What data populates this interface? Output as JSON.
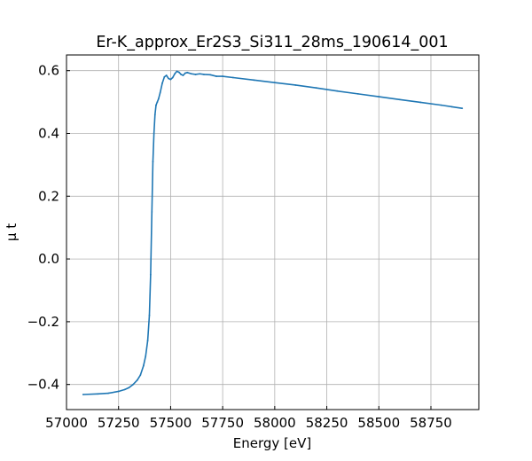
{
  "chart_data": {
    "type": "line",
    "title": "Er-K_approx_Er2S3_Si311_28ms_190614_001",
    "xlabel": "Energy [eV]",
    "ylabel": "μ t",
    "xlim": [
      57000,
      58980
    ],
    "ylim": [
      -0.48,
      0.65
    ],
    "xticks": [
      57000,
      57250,
      57500,
      57750,
      58000,
      58250,
      58500,
      58750
    ],
    "xtick_labels": [
      "57000",
      "57250",
      "57500",
      "57750",
      "58000",
      "58250",
      "58500",
      "58750"
    ],
    "yticks": [
      -0.4,
      -0.2,
      0.0,
      0.2,
      0.4,
      0.6
    ],
    "ytick_labels": [
      "−0.4",
      "−0.2",
      "0.0",
      "0.2",
      "0.4",
      "0.6"
    ],
    "grid": true,
    "color": "#1f77b4",
    "series": [
      {
        "x": [
          57080,
          57150,
          57200,
          57250,
          57280,
          57300,
          57320,
          57340,
          57355,
          57370,
          57380,
          57390,
          57398,
          57404,
          57410,
          57415,
          57420,
          57425,
          57430,
          57436,
          57442,
          57450,
          57460,
          57470,
          57480,
          57490,
          57500,
          57510,
          57520,
          57530,
          57540,
          57550,
          57560,
          57570,
          57580,
          57600,
          57620,
          57640,
          57660,
          57690,
          57720,
          57750,
          57800,
          57900,
          58000,
          58100,
          58200,
          58300,
          58400,
          58500,
          58600,
          58700,
          58800,
          58850,
          58900
        ],
        "y": [
          -0.432,
          -0.43,
          -0.428,
          -0.422,
          -0.416,
          -0.41,
          -0.4,
          -0.386,
          -0.37,
          -0.34,
          -0.31,
          -0.26,
          -0.18,
          -0.05,
          0.15,
          0.31,
          0.4,
          0.46,
          0.49,
          0.5,
          0.51,
          0.53,
          0.56,
          0.58,
          0.585,
          0.575,
          0.572,
          0.578,
          0.59,
          0.598,
          0.595,
          0.588,
          0.585,
          0.592,
          0.594,
          0.59,
          0.588,
          0.59,
          0.588,
          0.587,
          0.582,
          0.582,
          0.578,
          0.57,
          0.562,
          0.554,
          0.545,
          0.535,
          0.526,
          0.517,
          0.508,
          0.499,
          0.49,
          0.485,
          0.48
        ]
      }
    ]
  }
}
